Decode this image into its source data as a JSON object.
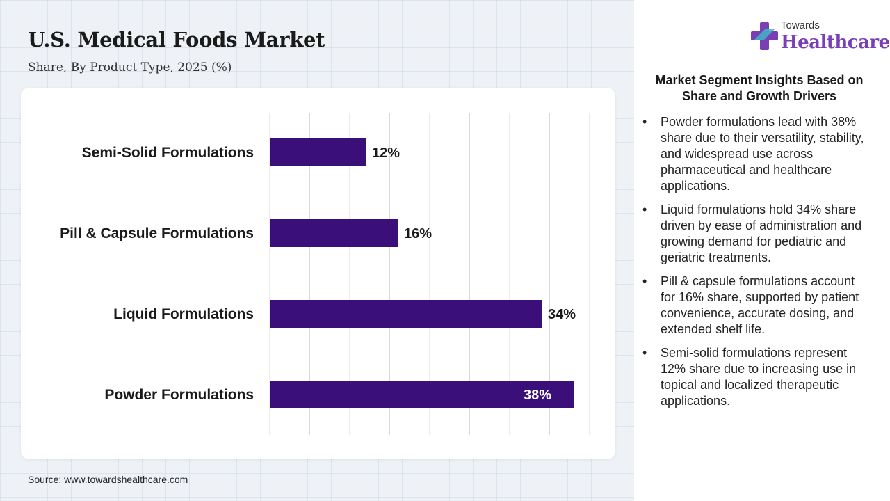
{
  "header": {
    "title": "U.S. Medical Foods Market",
    "subtitle": "Share, By Product Type, 2025 (%)"
  },
  "logo": {
    "line1": "Towards",
    "line2": "Healthcare",
    "colors": {
      "cross_purple": "#7b3fb5",
      "cross_teal": "#3fb6c8"
    }
  },
  "chart_data": {
    "type": "bar",
    "orientation": "horizontal",
    "categories": [
      "Semi-Solid Formulations",
      "Pill & Capsule Formulations",
      "Liquid Formulations",
      "Powder Formulations"
    ],
    "values": [
      12,
      16,
      34,
      38
    ],
    "value_labels": [
      "12%",
      "16%",
      "34%",
      "38%"
    ],
    "title": "",
    "xlabel": "",
    "ylabel": "",
    "xlim": [
      0,
      40
    ],
    "grid": "vertical",
    "bar_color": "#3a0f7a"
  },
  "source": "Source: www.towardshealthcare.com",
  "insights": {
    "title": "Market Segment Insights Based on Share and Growth Drivers",
    "bullet": "•",
    "items": [
      "Powder formulations lead with 38% share due to their versatility, stability, and widespread use across pharmaceutical and healthcare applications.",
      "Liquid formulations hold 34% share driven by ease of administration and growing demand for pediatric and geriatric treatments.",
      "Pill & capsule formulations account for 16% share, supported by patient convenience, accurate dosing, and extended shelf life.",
      "Semi-solid formulations represent 12% share due to increasing use in topical and localized therapeutic applications."
    ]
  }
}
